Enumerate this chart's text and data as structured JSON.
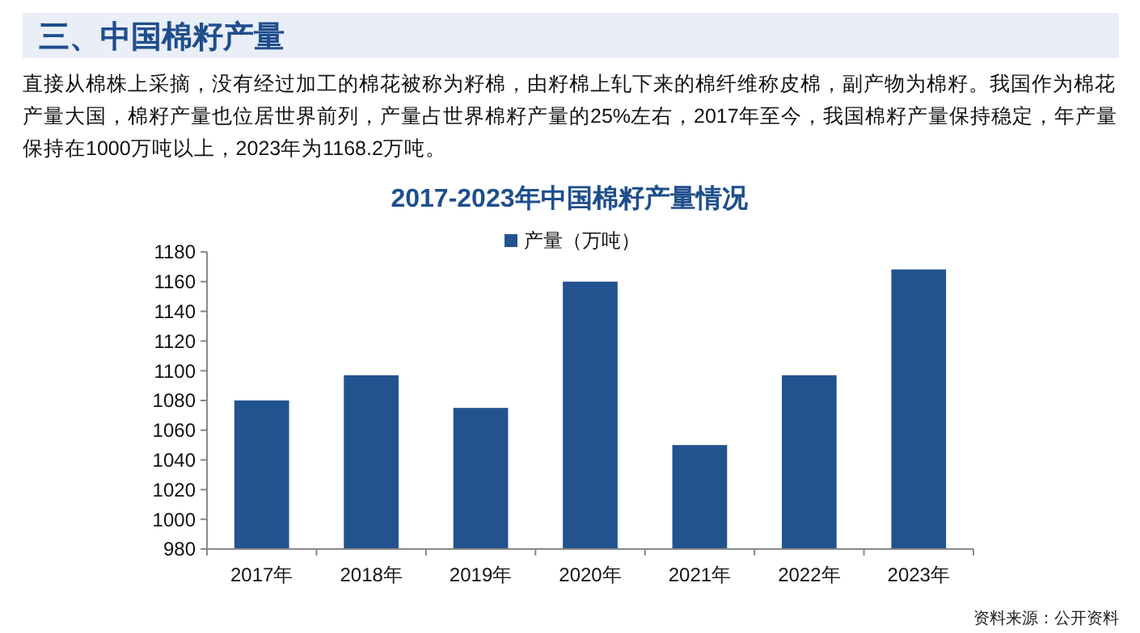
{
  "chart_data": {
    "type": "bar",
    "title": "2017-2023年中国棉籽产量情况",
    "categories": [
      "2017年",
      "2018年",
      "2019年",
      "2020年",
      "2021年",
      "2022年",
      "2023年"
    ],
    "series": [
      {
        "name": "产量（万吨）",
        "color": "#22538f",
        "values": [
          1080,
          1097,
          1075,
          1160,
          1050,
          1097,
          1168.2
        ]
      }
    ],
    "ylim": [
      980,
      1180
    ],
    "yticks": [
      980,
      1000,
      1020,
      1040,
      1060,
      1080,
      1100,
      1120,
      1140,
      1160,
      1180
    ],
    "grid": false,
    "legend": "top",
    "annotations": [
      "三、中国棉籽产量",
      "直接从棉株上采摘，没有经过加工的棉花被称为籽棉，由籽棉上轧下来的棉纤维称皮棉，副产物为棉籽。我国作为棉花产量大国，棉籽产量也位居世界前列，产量占世界棉籽产量的25%左右，2017年至今，我国棉籽产量保持稳定，年产量保持在1000万吨以上，2023年为1168.2万吨。",
      "资料来源：公开资料"
    ]
  }
}
